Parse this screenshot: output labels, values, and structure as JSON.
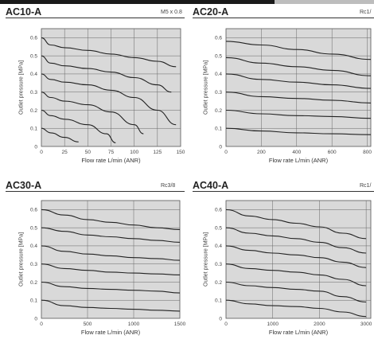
{
  "chart_data": [
    {
      "type": "line",
      "model": "AC10-A",
      "port": "M5 x 0.8",
      "xlabel": "Flow rate L/min (ANR)",
      "ylabel": "Outlet pressure [MPa]",
      "xlim": [
        0,
        150
      ],
      "ylim": [
        0,
        0.65
      ],
      "xticks": [
        0,
        25,
        50,
        75,
        100,
        125,
        150
      ],
      "yticks": [
        0,
        0.1,
        0.2,
        0.3,
        0.4,
        0.5,
        0.6
      ],
      "grid": true,
      "series": [
        {
          "points": [
            [
              0,
              0.6
            ],
            [
              10,
              0.56
            ],
            [
              25,
              0.545
            ],
            [
              50,
              0.53
            ],
            [
              75,
              0.51
            ],
            [
              100,
              0.49
            ],
            [
              125,
              0.47
            ],
            [
              145,
              0.44
            ]
          ]
        },
        {
          "points": [
            [
              0,
              0.5
            ],
            [
              10,
              0.46
            ],
            [
              25,
              0.445
            ],
            [
              50,
              0.43
            ],
            [
              75,
              0.41
            ],
            [
              100,
              0.38
            ],
            [
              125,
              0.34
            ],
            [
              140,
              0.3
            ]
          ]
        },
        {
          "points": [
            [
              0,
              0.4
            ],
            [
              10,
              0.37
            ],
            [
              25,
              0.355
            ],
            [
              50,
              0.34
            ],
            [
              75,
              0.31
            ],
            [
              100,
              0.27
            ],
            [
              125,
              0.2
            ],
            [
              145,
              0.12
            ]
          ]
        },
        {
          "points": [
            [
              0,
              0.3
            ],
            [
              10,
              0.27
            ],
            [
              25,
              0.25
            ],
            [
              50,
              0.23
            ],
            [
              75,
              0.19
            ],
            [
              100,
              0.12
            ],
            [
              110,
              0.07
            ]
          ]
        },
        {
          "points": [
            [
              0,
              0.2
            ],
            [
              10,
              0.17
            ],
            [
              25,
              0.15
            ],
            [
              50,
              0.12
            ],
            [
              70,
              0.07
            ],
            [
              80,
              0.02
            ]
          ]
        },
        {
          "points": [
            [
              0,
              0.1
            ],
            [
              10,
              0.075
            ],
            [
              25,
              0.05
            ],
            [
              40,
              0.025
            ]
          ]
        }
      ]
    },
    {
      "type": "line",
      "model": "AC20-A",
      "port": "Rc1/",
      "xlabel": "Flow rate L/min (ANR)",
      "ylabel": "Outlet pressure [MPa]",
      "xlim": [
        0,
        820
      ],
      "ylim": [
        0,
        0.65
      ],
      "xticks": [
        0,
        200,
        400,
        600,
        800
      ],
      "yticks": [
        0,
        0.1,
        0.2,
        0.3,
        0.4,
        0.5,
        0.6
      ],
      "grid": true,
      "series": [
        {
          "points": [
            [
              0,
              0.58
            ],
            [
              200,
              0.56
            ],
            [
              400,
              0.535
            ],
            [
              600,
              0.51
            ],
            [
              820,
              0.48
            ]
          ]
        },
        {
          "points": [
            [
              0,
              0.49
            ],
            [
              200,
              0.46
            ],
            [
              400,
              0.44
            ],
            [
              600,
              0.42
            ],
            [
              820,
              0.39
            ]
          ]
        },
        {
          "points": [
            [
              0,
              0.4
            ],
            [
              200,
              0.37
            ],
            [
              400,
              0.355
            ],
            [
              600,
              0.34
            ],
            [
              820,
              0.32
            ]
          ]
        },
        {
          "points": [
            [
              0,
              0.3
            ],
            [
              200,
              0.275
            ],
            [
              400,
              0.265
            ],
            [
              600,
              0.255
            ],
            [
              820,
              0.24
            ]
          ]
        },
        {
          "points": [
            [
              0,
              0.2
            ],
            [
              200,
              0.18
            ],
            [
              400,
              0.17
            ],
            [
              600,
              0.165
            ],
            [
              820,
              0.155
            ]
          ]
        },
        {
          "points": [
            [
              0,
              0.1
            ],
            [
              200,
              0.085
            ],
            [
              400,
              0.075
            ],
            [
              600,
              0.07
            ],
            [
              820,
              0.065
            ]
          ]
        }
      ]
    },
    {
      "type": "line",
      "model": "AC30-A",
      "port": "Rc3/8",
      "xlabel": "Flow rate L/min (ANR)",
      "ylabel": "Outlet pressure [MPa]",
      "xlim": [
        0,
        1500
      ],
      "ylim": [
        0,
        0.65
      ],
      "xticks": [
        0,
        500,
        1000,
        1500
      ],
      "yticks": [
        0,
        0.1,
        0.2,
        0.3,
        0.4,
        0.5,
        0.6
      ],
      "grid": true,
      "series": [
        {
          "points": [
            [
              0,
              0.6
            ],
            [
              250,
              0.57
            ],
            [
              500,
              0.545
            ],
            [
              750,
              0.53
            ],
            [
              1000,
              0.515
            ],
            [
              1250,
              0.5
            ],
            [
              1500,
              0.49
            ]
          ]
        },
        {
          "points": [
            [
              0,
              0.5
            ],
            [
              250,
              0.48
            ],
            [
              500,
              0.46
            ],
            [
              750,
              0.45
            ],
            [
              1000,
              0.44
            ],
            [
              1250,
              0.43
            ],
            [
              1500,
              0.42
            ]
          ]
        },
        {
          "points": [
            [
              0,
              0.4
            ],
            [
              250,
              0.37
            ],
            [
              500,
              0.355
            ],
            [
              750,
              0.345
            ],
            [
              1000,
              0.335
            ],
            [
              1250,
              0.33
            ],
            [
              1500,
              0.32
            ]
          ]
        },
        {
          "points": [
            [
              0,
              0.3
            ],
            [
              250,
              0.275
            ],
            [
              500,
              0.265
            ],
            [
              750,
              0.255
            ],
            [
              1000,
              0.25
            ],
            [
              1250,
              0.245
            ],
            [
              1500,
              0.24
            ]
          ]
        },
        {
          "points": [
            [
              0,
              0.2
            ],
            [
              250,
              0.175
            ],
            [
              500,
              0.165
            ],
            [
              750,
              0.16
            ],
            [
              1000,
              0.155
            ],
            [
              1250,
              0.15
            ],
            [
              1500,
              0.14
            ]
          ]
        },
        {
          "points": [
            [
              0,
              0.1
            ],
            [
              250,
              0.07
            ],
            [
              500,
              0.06
            ],
            [
              750,
              0.055
            ],
            [
              1000,
              0.05
            ],
            [
              1250,
              0.045
            ],
            [
              1500,
              0.04
            ]
          ]
        }
      ]
    },
    {
      "type": "line",
      "model": "AC40-A",
      "port": "Rc1/",
      "xlabel": "Flow rate L/min (ANR)",
      "ylabel": "Outlet pressure [MPa]",
      "xlim": [
        0,
        3100
      ],
      "ylim": [
        0,
        0.65
      ],
      "xticks": [
        0,
        1000,
        2000,
        3000
      ],
      "yticks": [
        0,
        0.1,
        0.2,
        0.3,
        0.4,
        0.5,
        0.6
      ],
      "grid": true,
      "series": [
        {
          "points": [
            [
              0,
              0.6
            ],
            [
              500,
              0.565
            ],
            [
              1000,
              0.545
            ],
            [
              1500,
              0.525
            ],
            [
              2000,
              0.505
            ],
            [
              2500,
              0.47
            ],
            [
              3000,
              0.44
            ]
          ]
        },
        {
          "points": [
            [
              0,
              0.5
            ],
            [
              500,
              0.47
            ],
            [
              1000,
              0.455
            ],
            [
              1500,
              0.44
            ],
            [
              2000,
              0.42
            ],
            [
              2500,
              0.39
            ],
            [
              3000,
              0.36
            ]
          ]
        },
        {
          "points": [
            [
              0,
              0.4
            ],
            [
              500,
              0.375
            ],
            [
              1000,
              0.36
            ],
            [
              1500,
              0.35
            ],
            [
              2000,
              0.335
            ],
            [
              2500,
              0.31
            ],
            [
              3000,
              0.28
            ]
          ]
        },
        {
          "points": [
            [
              0,
              0.3
            ],
            [
              500,
              0.275
            ],
            [
              1000,
              0.265
            ],
            [
              1500,
              0.255
            ],
            [
              2000,
              0.24
            ],
            [
              2500,
              0.215
            ],
            [
              3000,
              0.18
            ]
          ]
        },
        {
          "points": [
            [
              0,
              0.2
            ],
            [
              500,
              0.18
            ],
            [
              1000,
              0.17
            ],
            [
              1500,
              0.16
            ],
            [
              2000,
              0.15
            ],
            [
              2500,
              0.12
            ],
            [
              3000,
              0.09
            ]
          ]
        },
        {
          "points": [
            [
              0,
              0.1
            ],
            [
              500,
              0.08
            ],
            [
              1000,
              0.07
            ],
            [
              1500,
              0.065
            ],
            [
              2000,
              0.055
            ],
            [
              2500,
              0.035
            ],
            [
              3000,
              0.01
            ]
          ]
        }
      ]
    }
  ]
}
